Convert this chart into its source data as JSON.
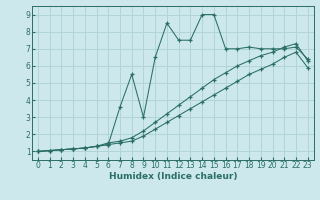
{
  "xlabel": "Humidex (Indice chaleur)",
  "bg_color": "#cce8ec",
  "grid_color": "#b0d4d8",
  "line_color": "#2a6e65",
  "xlim": [
    -0.5,
    23.5
  ],
  "ylim": [
    0.5,
    9.5
  ],
  "xticks": [
    0,
    1,
    2,
    3,
    4,
    5,
    6,
    7,
    8,
    9,
    10,
    11,
    12,
    13,
    14,
    15,
    16,
    17,
    18,
    19,
    20,
    21,
    22,
    23
  ],
  "yticks": [
    1,
    2,
    3,
    4,
    5,
    6,
    7,
    8,
    9
  ],
  "line1_x": [
    0,
    1,
    2,
    3,
    4,
    5,
    6,
    7,
    8,
    9,
    10,
    11,
    12,
    13,
    14,
    15,
    16,
    17,
    18,
    19,
    20,
    21,
    22,
    23
  ],
  "line1_y": [
    1.0,
    1.05,
    1.1,
    1.15,
    1.2,
    1.3,
    1.4,
    1.5,
    1.6,
    1.9,
    2.3,
    2.7,
    3.1,
    3.5,
    3.9,
    4.3,
    4.7,
    5.1,
    5.5,
    5.8,
    6.1,
    6.5,
    6.8,
    5.9
  ],
  "line2_x": [
    0,
    1,
    2,
    3,
    4,
    5,
    6,
    7,
    8,
    9,
    10,
    11,
    12,
    13,
    14,
    15,
    16,
    17,
    18,
    19,
    20,
    21,
    22,
    23
  ],
  "line2_y": [
    1.0,
    1.05,
    1.1,
    1.15,
    1.2,
    1.3,
    1.5,
    1.6,
    1.8,
    2.2,
    2.7,
    3.2,
    3.7,
    4.2,
    4.7,
    5.2,
    5.6,
    6.0,
    6.3,
    6.6,
    6.8,
    7.1,
    7.3,
    6.3
  ],
  "line3_x": [
    0,
    1,
    2,
    3,
    4,
    5,
    6,
    7,
    8,
    9,
    10,
    11,
    12,
    13,
    14,
    15,
    16,
    17,
    18,
    19,
    20,
    21,
    22,
    23
  ],
  "line3_y": [
    1.0,
    1.05,
    1.1,
    1.15,
    1.2,
    1.3,
    1.4,
    3.6,
    5.5,
    3.0,
    6.5,
    8.5,
    7.5,
    7.5,
    9.0,
    9.0,
    7.0,
    7.0,
    7.1,
    7.0,
    7.0,
    7.0,
    7.1,
    6.4
  ]
}
